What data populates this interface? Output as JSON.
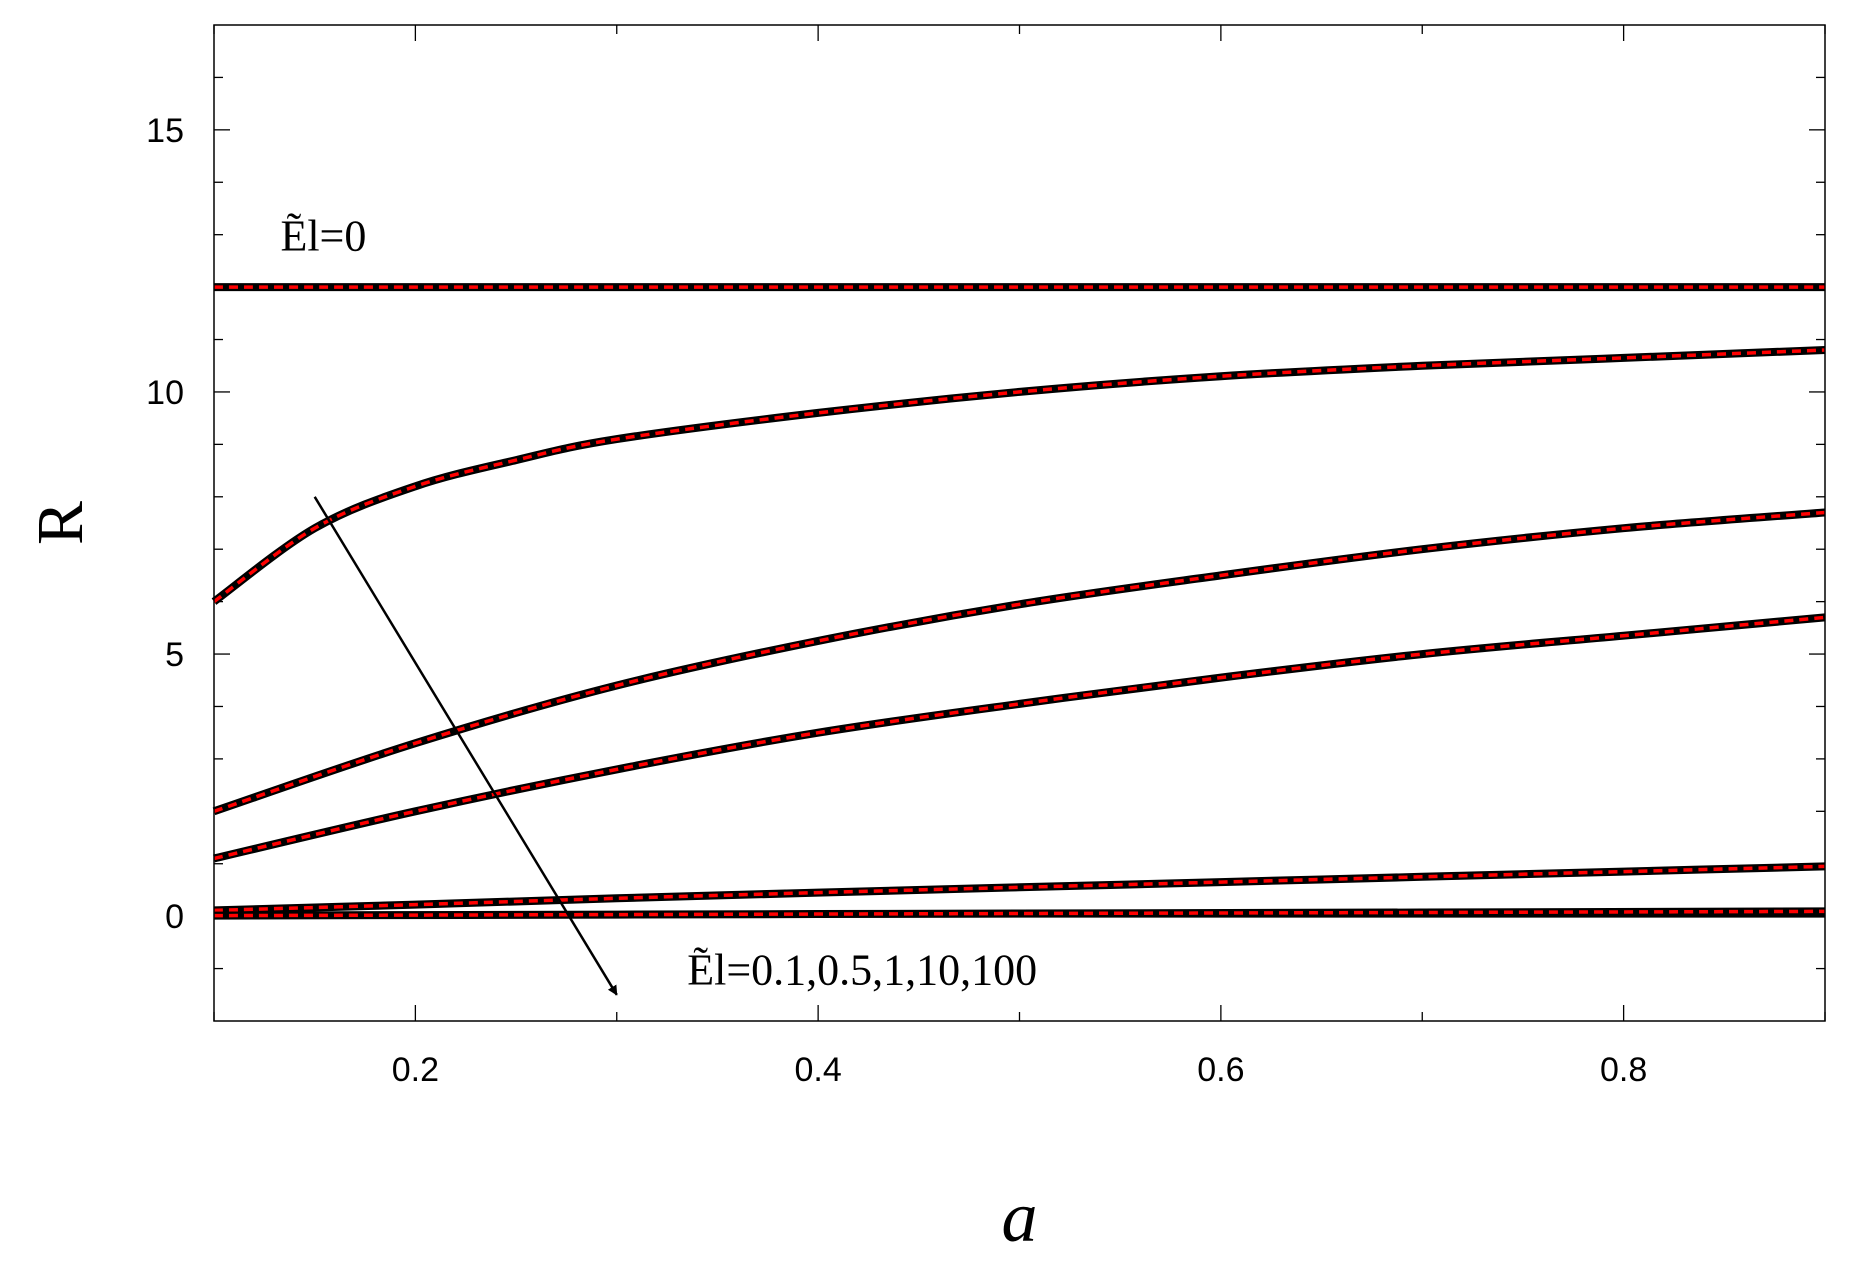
{
  "chart_data": {
    "type": "line",
    "title": "",
    "xlabel": "a",
    "ylabel": "R",
    "xlim": [
      0.1,
      0.9
    ],
    "ylim": [
      -2,
      17
    ],
    "xticks": [
      0.2,
      0.4,
      0.6,
      0.8
    ],
    "xtick_labels": [
      "0.2",
      "0.4",
      "0.6",
      "0.8"
    ],
    "yticks": [
      0,
      5,
      10,
      15
    ],
    "ytick_labels": [
      "0",
      "5",
      "10",
      "15"
    ],
    "grid": false,
    "legend": "none",
    "colors": {
      "solid": "#000000",
      "dashed": "#ff0000"
    },
    "series": [
      {
        "x": [
          0.1,
          0.15,
          0.2,
          0.3,
          0.4,
          0.5,
          0.6,
          0.7,
          0.8,
          0.9
        ],
        "y": [
          12.0,
          12.0,
          12.0,
          12.0,
          12.0,
          12.0,
          12.0,
          12.0,
          12.0,
          12.0
        ]
      },
      {
        "x": [
          0.1,
          0.15,
          0.2,
          0.25,
          0.3,
          0.4,
          0.5,
          0.6,
          0.7,
          0.8,
          0.9
        ],
        "y": [
          6.0,
          7.4,
          8.2,
          8.7,
          9.1,
          9.6,
          10.0,
          10.3,
          10.5,
          10.65,
          10.8
        ]
      },
      {
        "x": [
          0.1,
          0.2,
          0.3,
          0.4,
          0.5,
          0.6,
          0.7,
          0.8,
          0.9
        ],
        "y": [
          2.0,
          3.3,
          4.4,
          5.25,
          5.95,
          6.5,
          7.0,
          7.4,
          7.7
        ]
      },
      {
        "x": [
          0.1,
          0.2,
          0.3,
          0.4,
          0.5,
          0.6,
          0.7,
          0.8,
          0.9
        ],
        "y": [
          1.1,
          2.0,
          2.8,
          3.5,
          4.05,
          4.55,
          5.0,
          5.35,
          5.7
        ]
      },
      {
        "x": [
          0.1,
          0.2,
          0.3,
          0.4,
          0.5,
          0.6,
          0.7,
          0.8,
          0.9
        ],
        "y": [
          0.11,
          0.22,
          0.34,
          0.45,
          0.55,
          0.65,
          0.75,
          0.85,
          0.95
        ]
      },
      {
        "x": [
          0.1,
          0.3,
          0.5,
          0.7,
          0.9
        ],
        "y": [
          0.01,
          0.03,
          0.05,
          0.07,
          0.09
        ]
      }
    ],
    "annotations": [
      {
        "text": "Ẽl=0",
        "x": 0.133,
        "y": 12.7
      },
      {
        "text": "Ẽl=0.1,0.5,1,10,100",
        "x": 0.335,
        "y": -1.3
      }
    ],
    "arrow": {
      "from": [
        0.15,
        8.0
      ],
      "to": [
        0.3,
        -1.5
      ]
    }
  }
}
